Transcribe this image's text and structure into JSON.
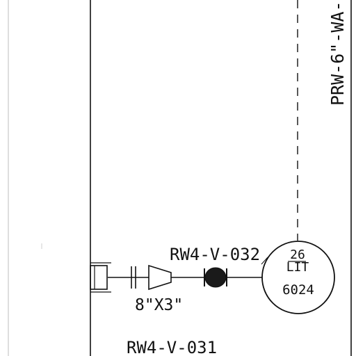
{
  "drawing": {
    "line_labels": {
      "vertical_line_tag": "PRW-6\"-WA-"
    },
    "valves": [
      {
        "tag": "RW4-V-032"
      },
      {
        "tag": "RW4-V-031"
      }
    ],
    "reducer": {
      "size": "8\"X3\""
    },
    "instrument": {
      "number": "26",
      "function": "LIT",
      "loop": "6024"
    }
  },
  "colors": {
    "line": "#111111",
    "faint_line": "#bdbdbd",
    "background": "#ffffff"
  }
}
